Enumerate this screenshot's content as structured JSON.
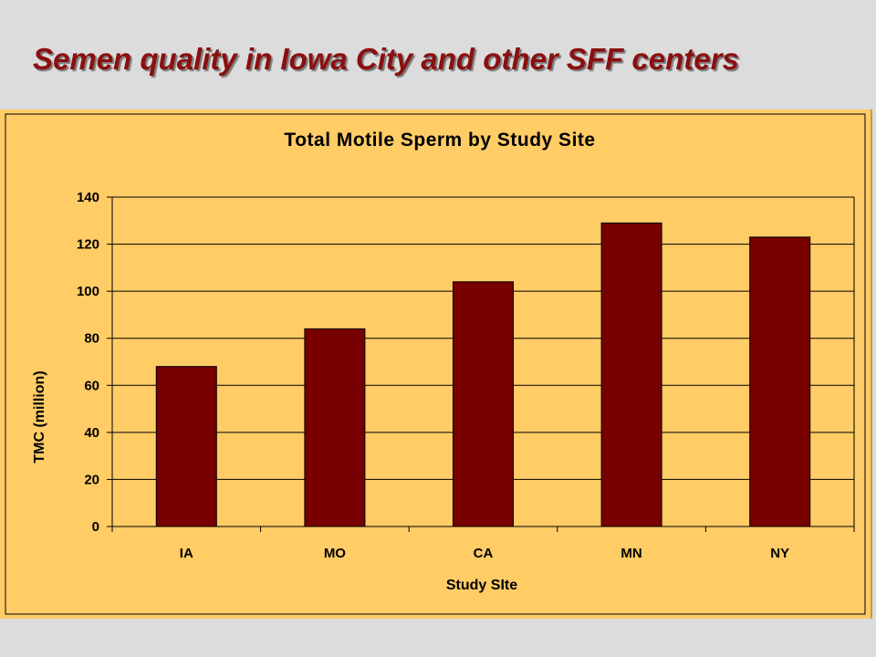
{
  "slide": {
    "title": "Semen quality in Iowa City and other SFF centers"
  },
  "colors": {
    "slide_background": "#dcdcdc",
    "title_color": "#8b0f0f",
    "chart_background": "#ffcc66",
    "bar_fill": "#770000",
    "gridline": "#000000"
  },
  "chart_data": {
    "type": "bar",
    "title": "Total Motile Sperm by Study Site",
    "xlabel": "Study SIte",
    "ylabel": "TMC (million)",
    "categories": [
      "IA",
      "MO",
      "CA",
      "MN",
      "NY"
    ],
    "values": [
      68,
      84,
      104,
      129,
      123
    ],
    "ylim": [
      0,
      140
    ],
    "yticks": [
      0,
      20,
      40,
      60,
      80,
      100,
      120,
      140
    ],
    "grid": true,
    "legend": "none"
  }
}
